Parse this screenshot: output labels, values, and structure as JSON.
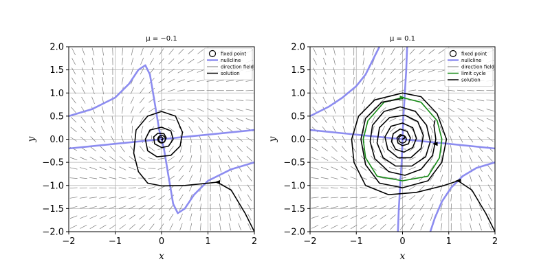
{
  "chart_data": [
    {
      "type": "line",
      "title": "μ = −0.1",
      "xlabel": "x",
      "ylabel": "y",
      "xlim": [
        -2,
        2
      ],
      "ylim": [
        -2,
        2
      ],
      "xticks": [
        "−2",
        "−1",
        "0",
        "1",
        "2"
      ],
      "yticks": [
        "−2.0",
        "−1.5",
        "−1.0",
        "−0.5",
        "0.0",
        "0.5",
        "1.0",
        "1.5",
        "2.0"
      ],
      "grid": true,
      "legend_position": "top-right",
      "legend": [
        "fixed point",
        "nullcline",
        "direction field",
        "solution"
      ],
      "fixed_point": [
        0,
        0
      ],
      "nullclines": [
        {
          "name": "nullcline",
          "points": [
            [
              -2,
              -0.2
            ],
            [
              -1,
              -0.1
            ],
            [
              0,
              0
            ],
            [
              1,
              0.1
            ],
            [
              2,
              0.2
            ]
          ]
        },
        {
          "name": "nullcline",
          "points": [
            [
              -2,
              0.5
            ],
            [
              -1.5,
              0.65
            ],
            [
              -1,
              0.9
            ],
            [
              -0.7,
              1.2
            ],
            [
              -0.5,
              1.5
            ],
            [
              -0.35,
              1.6
            ],
            [
              -0.25,
              1.4
            ],
            [
              -0.15,
              0.8
            ],
            [
              -0.05,
              0.2
            ],
            [
              0,
              0
            ],
            [
              0.05,
              -0.2
            ],
            [
              0.15,
              -0.8
            ],
            [
              0.25,
              -1.4
            ],
            [
              0.35,
              -1.6
            ],
            [
              0.5,
              -1.5
            ],
            [
              0.7,
              -1.2
            ],
            [
              1,
              -0.9
            ],
            [
              1.5,
              -0.65
            ],
            [
              2,
              -0.5
            ]
          ]
        }
      ],
      "solutions": [
        {
          "name": "solution",
          "points": [
            [
              2,
              -2
            ],
            [
              1.8,
              -1.6
            ],
            [
              1.5,
              -1.1
            ],
            [
              1.2,
              -0.93
            ],
            [
              1,
              -0.95
            ],
            [
              0.5,
              -1.0
            ],
            [
              0,
              -1.01
            ],
            [
              -0.3,
              -0.95
            ],
            [
              -0.5,
              -0.7
            ],
            [
              -0.6,
              -0.3
            ],
            [
              -0.55,
              0.2
            ],
            [
              -0.3,
              0.5
            ],
            [
              0,
              0.6
            ],
            [
              0.3,
              0.5
            ],
            [
              0.45,
              0.15
            ],
            [
              0.4,
              -0.15
            ],
            [
              0.2,
              -0.35
            ],
            [
              -0.1,
              -0.38
            ],
            [
              -0.3,
              -0.25
            ],
            [
              -0.35,
              0
            ],
            [
              -0.25,
              0.2
            ],
            [
              0,
              0.26
            ],
            [
              0.2,
              0.18
            ],
            [
              0.25,
              0
            ],
            [
              0.15,
              -0.15
            ],
            [
              0,
              -0.18
            ],
            [
              -0.15,
              -0.1
            ],
            [
              -0.17,
              0.05
            ],
            [
              -0.08,
              0.13
            ],
            [
              0.05,
              0.12
            ],
            [
              0.1,
              0.03
            ],
            [
              0.06,
              -0.06
            ],
            [
              -0.02,
              -0.07
            ],
            [
              -0.07,
              -0.02
            ],
            [
              -0.05,
              0.04
            ],
            [
              0,
              0.05
            ],
            [
              0.03,
              0.02
            ],
            [
              0.02,
              -0.02
            ],
            [
              0,
              0
            ]
          ],
          "arrow_at": [
            1.2,
            -0.93
          ]
        }
      ]
    },
    {
      "type": "line",
      "title": "μ = 0.1",
      "xlabel": "x",
      "ylabel": "y",
      "xlim": [
        -2,
        2
      ],
      "ylim": [
        -2,
        2
      ],
      "xticks": [
        "−2",
        "−1",
        "0",
        "1",
        "2"
      ],
      "yticks": [
        "−2.0",
        "−1.5",
        "−1.0",
        "−0.5",
        "0.0",
        "0.5",
        "1.0",
        "1.5",
        "2.0"
      ],
      "grid": true,
      "legend_position": "top-right",
      "legend": [
        "fixed point",
        "nullcline",
        "direction field",
        "limit cycle",
        "solution"
      ],
      "fixed_point": [
        0,
        0
      ],
      "nullclines": [
        {
          "name": "nullcline",
          "points": [
            [
              -2,
              0.2
            ],
            [
              -1,
              0.1
            ],
            [
              0,
              0
            ],
            [
              1,
              -0.1
            ],
            [
              2,
              -0.2
            ]
          ]
        },
        {
          "name": "nullcline",
          "points": [
            [
              -2,
              0.5
            ],
            [
              -1.6,
              0.7
            ],
            [
              -1.3,
              0.9
            ],
            [
              -1,
              1.15
            ],
            [
              -0.8,
              1.4
            ],
            [
              -0.6,
              1.8
            ],
            [
              -0.5,
              2.0
            ]
          ]
        },
        {
          "name": "nullcline",
          "points": [
            [
              0.1,
              2.0
            ],
            [
              0.08,
              1.5
            ],
            [
              0.05,
              1.0
            ],
            [
              0.02,
              0.5
            ],
            [
              0,
              0
            ],
            [
              -0.02,
              -0.5
            ],
            [
              -0.05,
              -1.0
            ],
            [
              -0.08,
              -1.5
            ],
            [
              -0.1,
              -2.0
            ]
          ]
        },
        {
          "name": "nullcline",
          "points": [
            [
              0.6,
              -2.0
            ],
            [
              0.7,
              -1.7
            ],
            [
              0.85,
              -1.35
            ],
            [
              1.05,
              -1.05
            ],
            [
              1.3,
              -0.8
            ],
            [
              1.6,
              -0.62
            ],
            [
              2,
              -0.5
            ]
          ]
        }
      ],
      "limit_cycle": {
        "name": "limit cycle",
        "points": [
          [
            0,
            0.9
          ],
          [
            0.4,
            0.8
          ],
          [
            0.75,
            0.4
          ],
          [
            0.85,
            0
          ],
          [
            0.8,
            -0.4
          ],
          [
            0.55,
            -0.8
          ],
          [
            0,
            -0.9
          ],
          [
            -0.55,
            -0.8
          ],
          [
            -0.8,
            -0.4
          ],
          [
            -0.85,
            0
          ],
          [
            -0.75,
            0.4
          ],
          [
            -0.4,
            0.8
          ],
          [
            0,
            0.9
          ]
        ],
        "arrow_at": [
          0,
          0.9
        ]
      },
      "solutions": [
        {
          "name": "solution",
          "points": [
            [
              2,
              -2
            ],
            [
              1.8,
              -1.6
            ],
            [
              1.5,
              -1.1
            ],
            [
              1.2,
              -0.9
            ],
            [
              0.9,
              -1.0
            ],
            [
              0.3,
              -1.15
            ],
            [
              -0.3,
              -1.2
            ],
            [
              -0.8,
              -1.0
            ],
            [
              -1.05,
              -0.5
            ],
            [
              -1.1,
              0
            ],
            [
              -0.95,
              0.5
            ],
            [
              -0.6,
              0.85
            ],
            [
              0,
              1.0
            ],
            [
              0.4,
              0.92
            ],
            [
              0.75,
              0.55
            ],
            [
              0.95,
              0
            ],
            [
              0.85,
              -0.5
            ],
            [
              0.55,
              -0.9
            ],
            [
              0,
              -1.05
            ],
            [
              -0.5,
              -0.95
            ],
            [
              -0.8,
              -0.55
            ],
            [
              -0.9,
              0
            ],
            [
              -0.8,
              0.45
            ],
            [
              -0.45,
              0.8
            ],
            [
              0,
              0.88
            ]
          ],
          "arrow_at": [
            1.2,
            -0.9
          ]
        },
        {
          "name": "solution",
          "points": [
            [
              0,
              0
            ],
            [
              0.05,
              0.03
            ],
            [
              0.03,
              0.08
            ],
            [
              -0.05,
              0.1
            ],
            [
              -0.12,
              0.03
            ],
            [
              -0.1,
              -0.08
            ],
            [
              0,
              -0.14
            ],
            [
              0.13,
              -0.1
            ],
            [
              0.17,
              0.03
            ],
            [
              0.1,
              0.17
            ],
            [
              -0.05,
              0.22
            ],
            [
              -0.2,
              0.12
            ],
            [
              -0.24,
              -0.05
            ],
            [
              -0.15,
              -0.22
            ],
            [
              0.03,
              -0.28
            ],
            [
              0.22,
              -0.18
            ],
            [
              0.3,
              0.02
            ],
            [
              0.22,
              0.25
            ],
            [
              0,
              0.35
            ],
            [
              -0.25,
              0.28
            ],
            [
              -0.38,
              0.05
            ],
            [
              -0.32,
              -0.22
            ],
            [
              -0.1,
              -0.4
            ],
            [
              0.18,
              -0.4
            ],
            [
              0.4,
              -0.2
            ],
            [
              0.45,
              0.08
            ],
            [
              0.33,
              0.38
            ],
            [
              0.05,
              0.52
            ],
            [
              -0.28,
              0.47
            ],
            [
              -0.5,
              0.25
            ],
            [
              -0.55,
              -0.08
            ],
            [
              -0.42,
              -0.4
            ],
            [
              -0.15,
              -0.58
            ],
            [
              0.2,
              -0.58
            ],
            [
              0.5,
              -0.38
            ],
            [
              0.6,
              -0.05
            ],
            [
              0.52,
              0.3
            ],
            [
              0.28,
              0.6
            ],
            [
              -0.05,
              0.7
            ],
            [
              -0.4,
              0.6
            ],
            [
              -0.65,
              0.3
            ],
            [
              -0.7,
              -0.05
            ],
            [
              -0.6,
              -0.42
            ],
            [
              -0.3,
              -0.7
            ],
            [
              0.05,
              -0.78
            ],
            [
              0.4,
              -0.65
            ],
            [
              0.65,
              -0.35
            ],
            [
              0.72,
              0
            ],
            [
              0.68,
              0.3
            ],
            [
              0.7,
              0.4
            ]
          ],
          "arrow_at": [
            0.7,
            -0.1
          ]
        }
      ]
    }
  ],
  "colors": {
    "nullcline": "#8c8cf0",
    "direction_field": "#7a7a7a",
    "limit_cycle": "#158a15",
    "solution": "#000000",
    "grid": "#b0b0b0"
  }
}
